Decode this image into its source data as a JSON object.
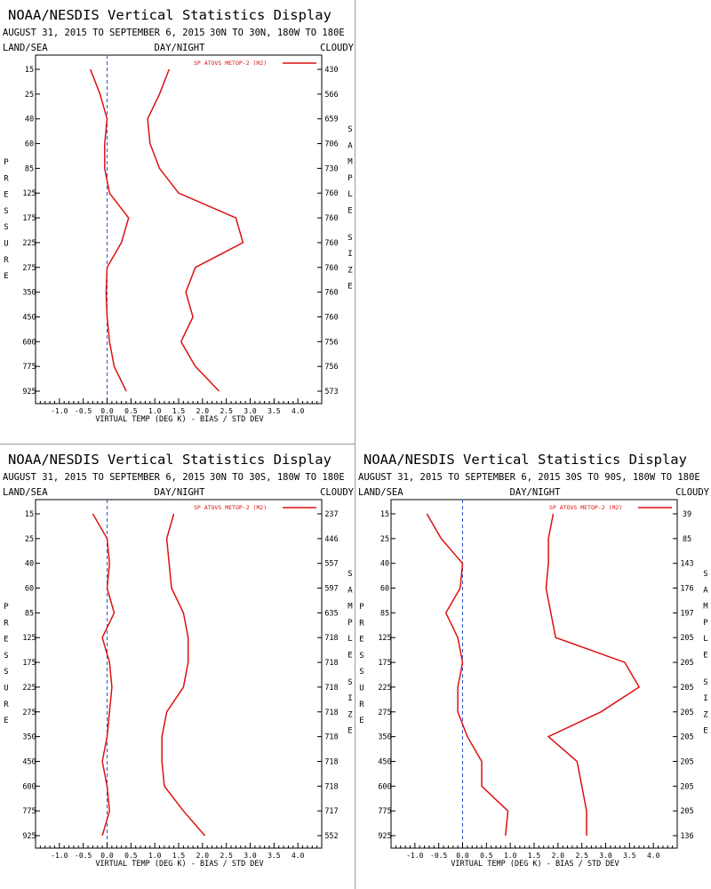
{
  "colors": {
    "series": "#dd1111",
    "axis": "#000000",
    "zero_line": "#3355cc",
    "divider": "#9a9a9a"
  },
  "chart_data": [
    {
      "type": "line",
      "title": "NOAA/NESDIS Vertical Statistics Display",
      "subtitle": "AUGUST 31, 2015 TO SEPTEMBER 6, 2015",
      "region": "30N TO 30N, 180W TO 180E",
      "header_left": "LAND/SEA",
      "header_center": "DAY/NIGHT",
      "header_right": "CLOUDY",
      "xlabel": "VIRTUAL TEMP (DEG K) - BIAS / STD DEV",
      "ylabel": "PRESSURE",
      "y2label": "SAMPLE SIZE",
      "legend": "SP ATOVS METOP-2 (M2)",
      "legend_position": "top-right",
      "xlim": [
        -1.5,
        4.5
      ],
      "x_ticks": [
        "-1.0",
        "-0.5",
        "0.0",
        "0.5",
        "1.0",
        "1.5",
        "2.0",
        "2.5",
        "3.0",
        "3.5",
        "4.0"
      ],
      "pressure_levels": [
        "15",
        "25",
        "40",
        "60",
        "85",
        "125",
        "175",
        "225",
        "275",
        "350",
        "450",
        "600",
        "775",
        "925"
      ],
      "sample_size": [
        "430",
        "566",
        "659",
        "706",
        "730",
        "760",
        "760",
        "760",
        "760",
        "760",
        "760",
        "756",
        "756",
        "573"
      ],
      "series": [
        {
          "name": "BIAS",
          "values": [
            -0.35,
            -0.15,
            0.0,
            -0.05,
            -0.05,
            0.05,
            0.45,
            0.3,
            0.0,
            -0.02,
            0.0,
            0.05,
            0.15,
            0.4
          ]
        },
        {
          "name": "STD DEV",
          "values": [
            1.3,
            1.1,
            0.85,
            0.9,
            1.1,
            1.5,
            2.7,
            2.85,
            1.85,
            1.65,
            1.8,
            1.55,
            1.85,
            2.35
          ]
        }
      ]
    },
    {
      "type": "line",
      "title": "NOAA/NESDIS Vertical Statistics Display",
      "subtitle": "AUGUST 31, 2015 TO SEPTEMBER 6, 2015",
      "region": "30N TO 30S, 180W TO 180E",
      "header_left": "LAND/SEA",
      "header_center": "DAY/NIGHT",
      "header_right": "CLOUDY",
      "xlabel": "VIRTUAL TEMP (DEG K) - BIAS / STD DEV",
      "ylabel": "PRESSURE",
      "y2label": "SAMPLE SIZE",
      "legend": "SP ATOVS METOP-2 (M2)",
      "legend_position": "top-right",
      "xlim": [
        -1.5,
        4.5
      ],
      "x_ticks": [
        "-1.0",
        "-0.5",
        "0.0",
        "0.5",
        "1.0",
        "1.5",
        "2.0",
        "2.5",
        "3.0",
        "3.5",
        "4.0"
      ],
      "pressure_levels": [
        "15",
        "25",
        "40",
        "60",
        "85",
        "125",
        "175",
        "225",
        "275",
        "350",
        "450",
        "600",
        "775",
        "925"
      ],
      "sample_size": [
        "237",
        "446",
        "557",
        "597",
        "635",
        "718",
        "718",
        "718",
        "718",
        "718",
        "718",
        "718",
        "717",
        "552"
      ],
      "series": [
        {
          "name": "BIAS",
          "values": [
            -0.3,
            0.0,
            0.05,
            0.0,
            0.15,
            -0.1,
            0.05,
            0.1,
            0.05,
            0.0,
            -0.1,
            0.0,
            0.05,
            -0.1
          ]
        },
        {
          "name": "STD DEV",
          "values": [
            1.4,
            1.25,
            1.3,
            1.35,
            1.6,
            1.7,
            1.7,
            1.6,
            1.25,
            1.15,
            1.15,
            1.2,
            1.6,
            2.05
          ]
        }
      ]
    },
    {
      "type": "line",
      "title": "NOAA/NESDIS Vertical Statistics Display",
      "subtitle": "AUGUST 31, 2015 TO SEPTEMBER 6, 2015",
      "region": "30S TO 90S, 180W TO 180E",
      "header_left": "LAND/SEA",
      "header_center": "DAY/NIGHT",
      "header_right": "CLOUDY",
      "xlabel": "VIRTUAL TEMP (DEG K) - BIAS / STD DEV",
      "ylabel": "PRESSURE",
      "y2label": "SAMPLE SIZE",
      "legend": "SP ATOVS METOP-2 (M2)",
      "legend_position": "top-right",
      "xlim": [
        -1.5,
        4.5
      ],
      "x_ticks": [
        "-1.0",
        "-0.5",
        "0.0",
        "0.5",
        "1.0",
        "1.5",
        "2.0",
        "2.5",
        "3.0",
        "3.5",
        "4.0"
      ],
      "pressure_levels": [
        "15",
        "25",
        "40",
        "60",
        "85",
        "125",
        "175",
        "225",
        "275",
        "350",
        "450",
        "600",
        "775",
        "925"
      ],
      "sample_size": [
        "39",
        "85",
        "143",
        "176",
        "197",
        "205",
        "205",
        "205",
        "205",
        "205",
        "205",
        "205",
        "205",
        "136"
      ],
      "series": [
        {
          "name": "BIAS",
          "values": [
            -0.75,
            -0.45,
            0.0,
            -0.05,
            -0.35,
            -0.1,
            0.0,
            -0.1,
            -0.1,
            0.1,
            0.4,
            0.4,
            0.95,
            0.9
          ]
        },
        {
          "name": "STD DEV",
          "values": [
            1.9,
            1.8,
            1.8,
            1.75,
            1.85,
            1.95,
            3.4,
            3.7,
            2.9,
            1.8,
            2.4,
            2.5,
            2.6,
            2.6
          ]
        }
      ]
    }
  ]
}
